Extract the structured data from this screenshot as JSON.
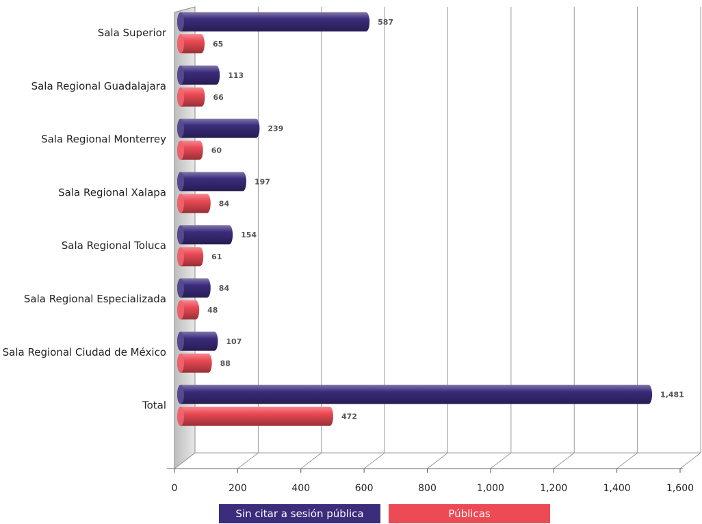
{
  "chart_data": {
    "type": "bar",
    "orientation": "horizontal",
    "categories": [
      "Sala Superior",
      "Sala Regional Guadalajara",
      "Sala Regional Monterrey",
      "Sala Regional Xalapa",
      "Sala Regional Toluca",
      "Sala Regional Especializada",
      "Sala Regional Ciudad de México",
      "Total"
    ],
    "series": [
      {
        "name": "Sin citar a sesión pública",
        "color": "#3c2c7c",
        "values": [
          587,
          113,
          239,
          197,
          154,
          84,
          107,
          1481
        ],
        "value_labels": [
          "587",
          "113",
          "239",
          "197",
          "154",
          "84",
          "107",
          "1,481"
        ]
      },
      {
        "name": "Públicas",
        "color": "#ec4a55",
        "values": [
          65,
          66,
          60,
          84,
          61,
          48,
          88,
          472
        ],
        "value_labels": [
          "65",
          "66",
          "60",
          "84",
          "61",
          "48",
          "88",
          "472"
        ]
      }
    ],
    "xlim": [
      0,
      1600
    ],
    "x_ticks": [
      0,
      200,
      400,
      600,
      800,
      1000,
      1200,
      1400,
      1600
    ],
    "x_tick_labels": [
      "0",
      "200",
      "400",
      "600",
      "800",
      "1,000",
      "1,200",
      "1,400",
      "1,600"
    ],
    "xlabel": "",
    "ylabel": "",
    "title": "",
    "grid": true,
    "legend_position": "bottom",
    "style": "3d-cylinder"
  }
}
